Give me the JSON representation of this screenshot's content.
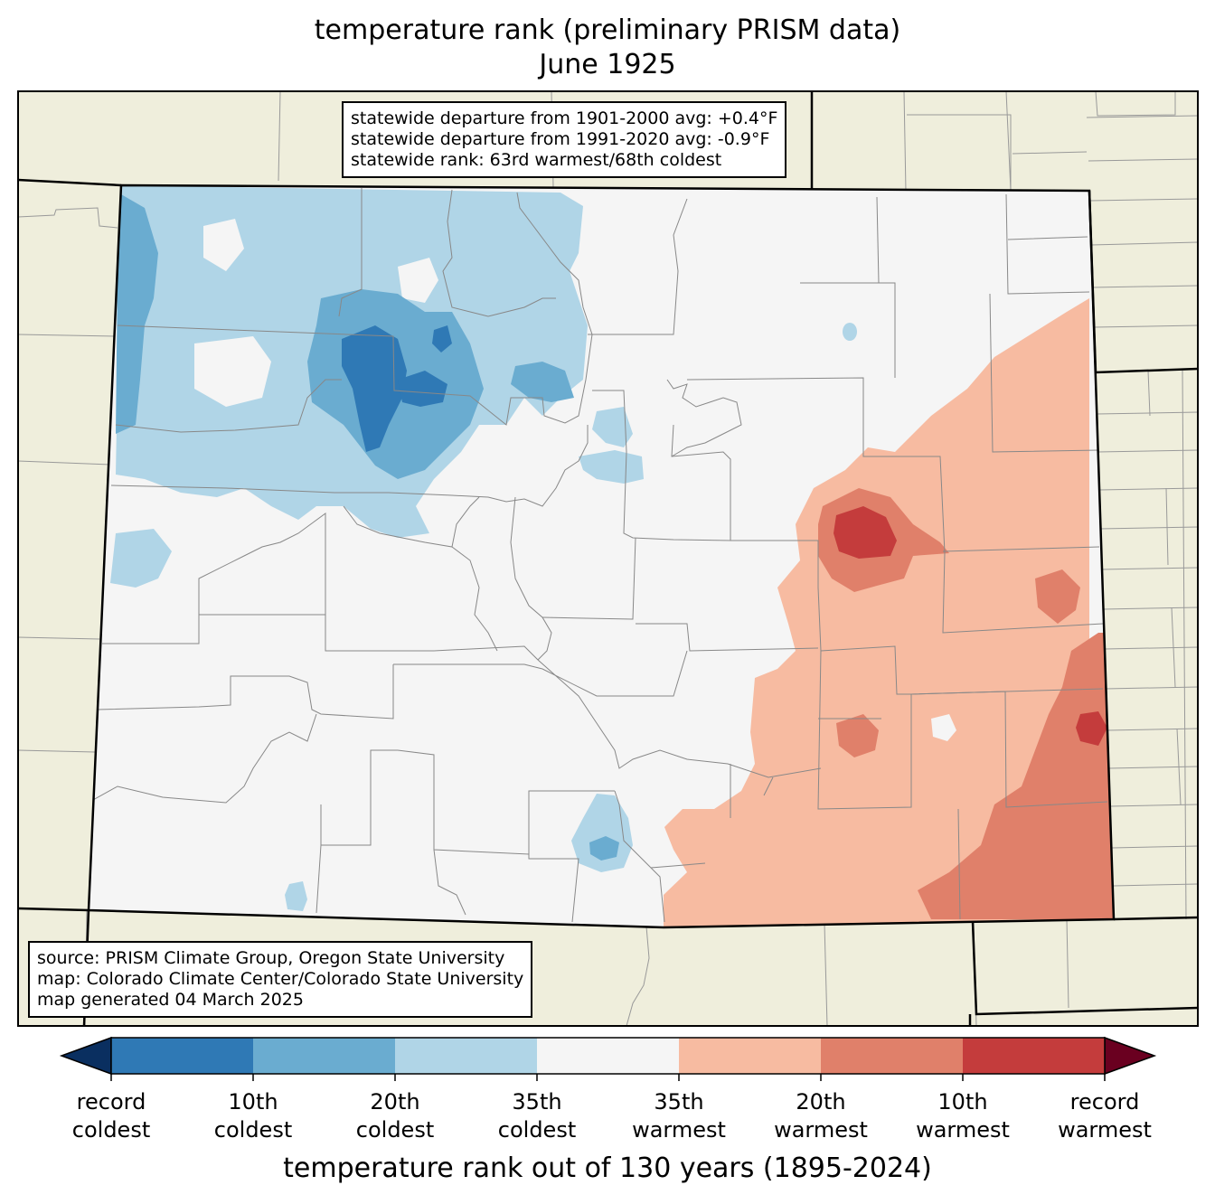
{
  "title": {
    "line1": "temperature rank (preliminary PRISM data)",
    "line2": "June 1925"
  },
  "stats_box": {
    "line1": "statewide departure from 1901-2000 avg: +0.4°F",
    "line2": "statewide departure from 1991-2020 avg: -0.9°F",
    "line3": "statewide rank: 63rd warmest/68th coldest"
  },
  "source_box": {
    "line1": "source: PRISM Climate Group, Oregon State University",
    "line2": "map: Colorado Climate Center/Colorado State University",
    "line3": "map generated 04 March 2025"
  },
  "colorbar": {
    "title": "temperature rank out of 130 years (1895-2024)",
    "bins": [
      {
        "color": "#2f79b5"
      },
      {
        "color": "#6aacd0"
      },
      {
        "color": "#b0d5e7"
      },
      {
        "color": "#f5f5f5"
      },
      {
        "color": "#f7bba1"
      },
      {
        "color": "#e0806a"
      },
      {
        "color": "#c43c3c"
      }
    ],
    "under_color": "#0a2f60",
    "over_color": "#6a0020",
    "ticks": [
      {
        "line1": "record",
        "line2": "coldest"
      },
      {
        "line1": "10th",
        "line2": "coldest"
      },
      {
        "line1": "20th",
        "line2": "coldest"
      },
      {
        "line1": "35th",
        "line2": "coldest"
      },
      {
        "line1": "35th",
        "line2": "warmest"
      },
      {
        "line1": "20th",
        "line2": "warmest"
      },
      {
        "line1": "10th",
        "line2": "warmest"
      },
      {
        "line1": "record",
        "line2": "warmest"
      }
    ]
  },
  "colors": {
    "background_land": "#efeedc",
    "state_fill": "#f5f5f5",
    "county_line": "#888888",
    "state_border": "#000000"
  }
}
